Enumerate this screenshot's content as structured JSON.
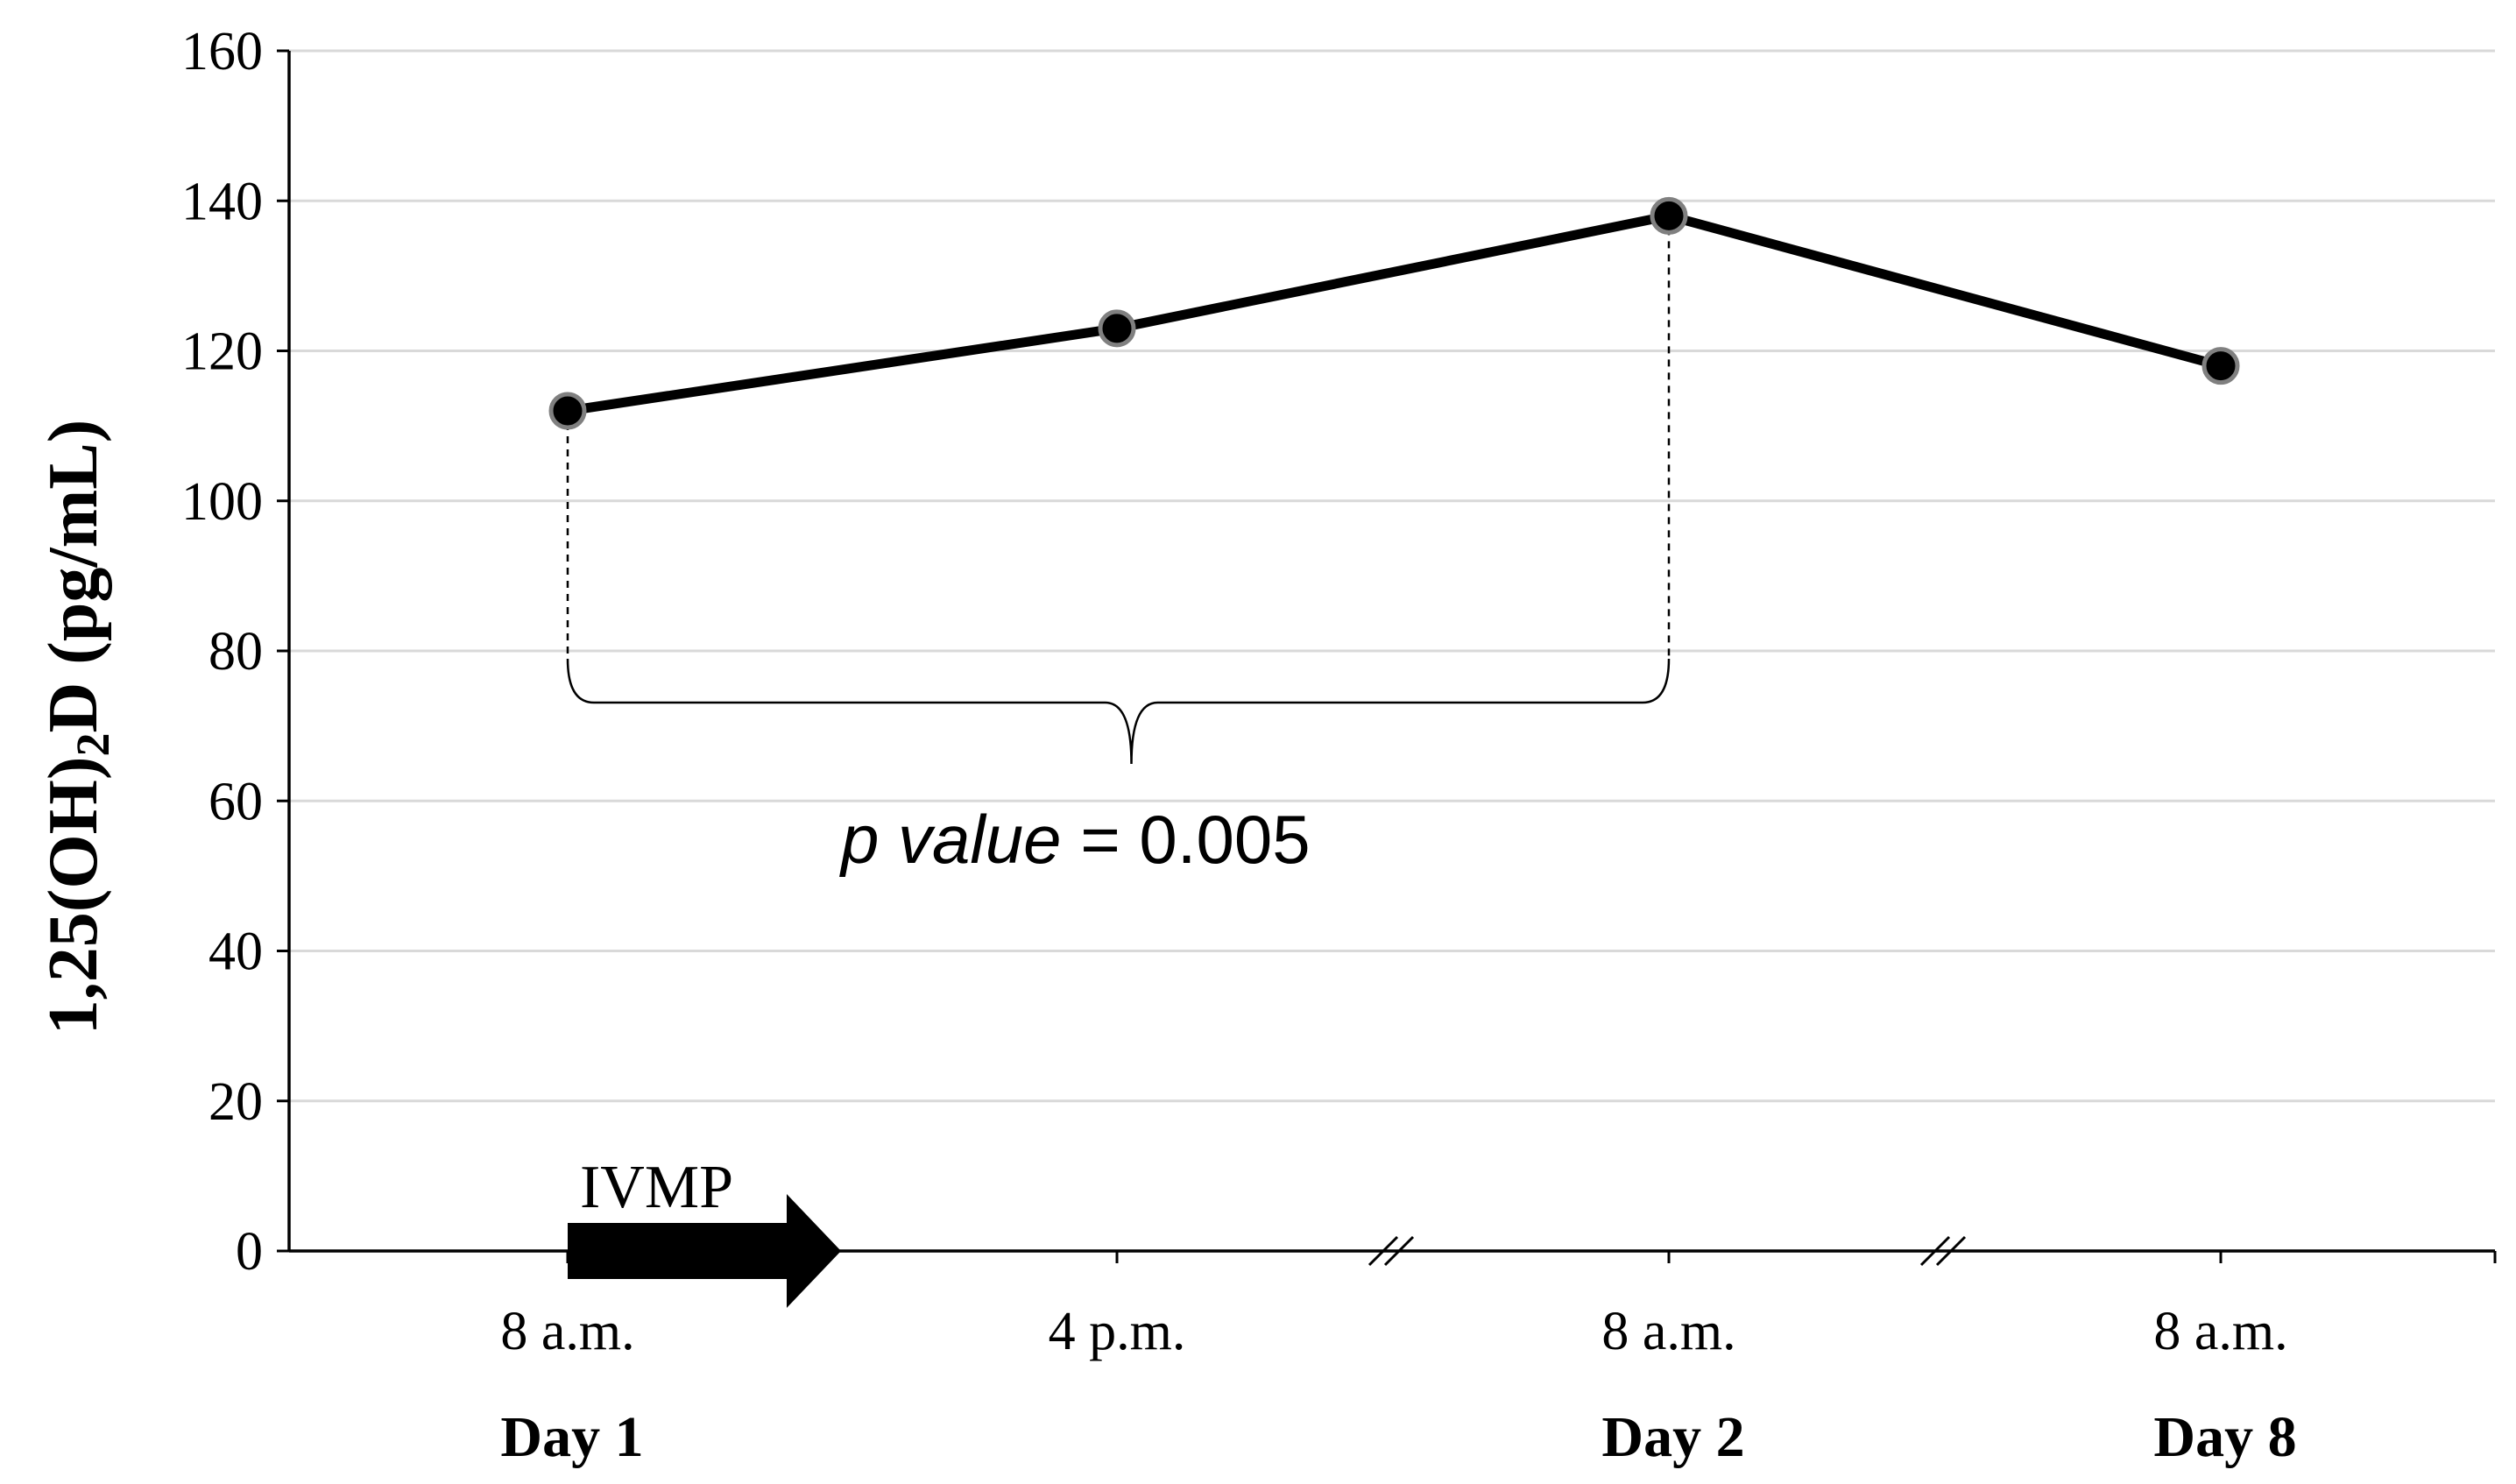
{
  "chart_data": {
    "type": "line",
    "title": "",
    "ylabel": {
      "prefix": "1,25(OH)",
      "subscript": "2",
      "suffix": "D (pg/mL)"
    },
    "xlabel": "",
    "ylim": [
      0,
      160
    ],
    "yticks": [
      "0",
      "20",
      "40",
      "60",
      "80",
      "100",
      "120",
      "140",
      "160"
    ],
    "grid": true,
    "categories": [
      "8 a.m.",
      "4 p.m.",
      "8 a.m.",
      "8 a.m."
    ],
    "day_labels": [
      "Day 1",
      "",
      "Day 2",
      "Day 8"
    ],
    "series": [
      {
        "name": "1,25(OH)2D",
        "values": [
          112,
          123,
          138,
          118
        ],
        "color": "#000000"
      }
    ],
    "annotations": {
      "p_value_italic": "p value",
      "p_value_rest": " = 0.005",
      "intervention_label": "IVMP"
    }
  }
}
